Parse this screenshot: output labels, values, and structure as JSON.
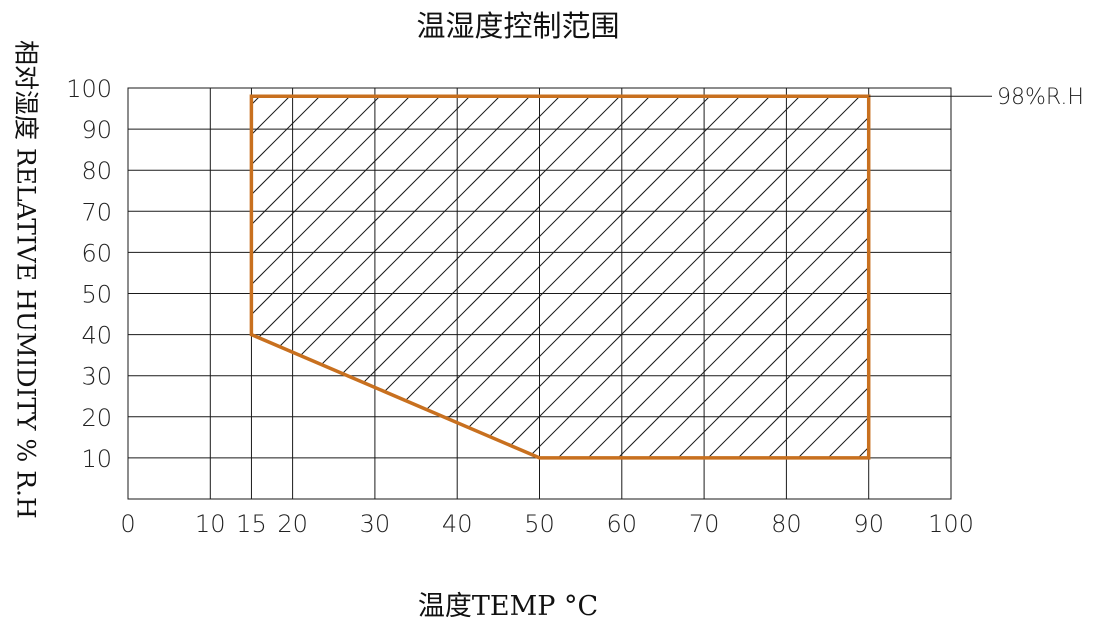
{
  "chart_data": {
    "type": "area",
    "title": "温湿度控制范围",
    "xlabel": "温度TEMP °C",
    "ylabel": "相对湿度 RELATIVE HUMIDITY % R.H",
    "x_ticks": [
      0,
      10,
      15,
      20,
      30,
      40,
      50,
      60,
      70,
      80,
      90,
      100
    ],
    "y_ticks": [
      10,
      20,
      30,
      40,
      50,
      60,
      70,
      80,
      90,
      100
    ],
    "xlim": [
      0,
      100
    ],
    "ylim": [
      0,
      100
    ],
    "grid": true,
    "series": [
      {
        "points": [
          {
            "x": 15,
            "y": 40
          },
          {
            "x": 15,
            "y": 98
          },
          {
            "x": 90,
            "y": 98
          },
          {
            "x": 90,
            "y": 10
          },
          {
            "x": 50,
            "y": 10
          },
          {
            "x": 15,
            "y": 40
          }
        ],
        "fill": "hatched",
        "color": "#c8701f"
      }
    ],
    "annotations": [
      {
        "text": "98%R.H",
        "y": 98
      }
    ]
  },
  "colors": {
    "boundary": "#c8701f",
    "grid": "#1a1a1a",
    "hatch": "#1a1a1a"
  }
}
